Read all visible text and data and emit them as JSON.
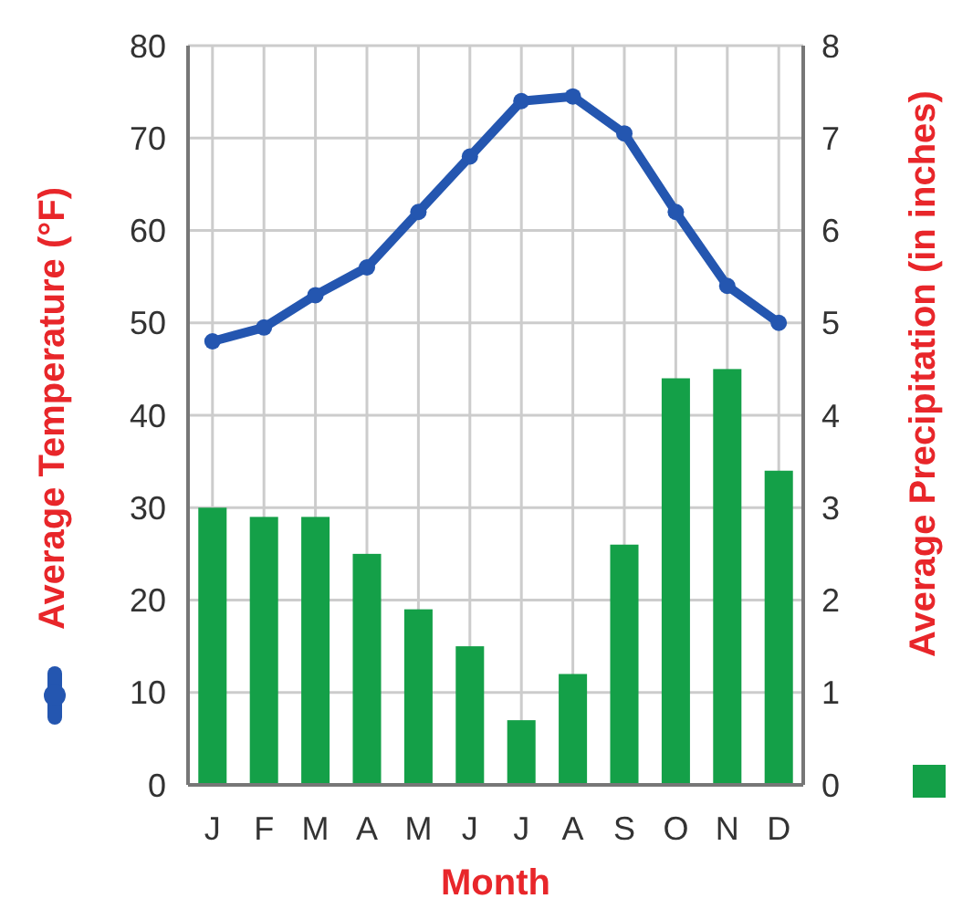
{
  "chart_data": {
    "type": "bar",
    "xlabel": "Month",
    "ylabel": "Average Temperature (°F)",
    "y2label": "Average Precipitation (in inches)",
    "categories": [
      "J",
      "F",
      "M",
      "A",
      "M",
      "J",
      "J",
      "A",
      "S",
      "O",
      "N",
      "D"
    ],
    "series": [
      {
        "axis": "y2",
        "color": "#14a048",
        "values": [
          3.0,
          2.9,
          2.9,
          2.5,
          1.9,
          1.5,
          0.7,
          1.2,
          2.6,
          4.4,
          4.5,
          3.4
        ]
      },
      {
        "type": "line",
        "axis": "y",
        "color": "#2456b0",
        "marker": "circle",
        "values": [
          48,
          49.5,
          53,
          56,
          62,
          68,
          74,
          74.5,
          70.5,
          62,
          54,
          50
        ]
      }
    ],
    "ylim": [
      0,
      80
    ],
    "yticks": [
      0,
      10,
      20,
      30,
      40,
      50,
      60,
      70,
      80
    ],
    "y2lim": [
      0,
      8
    ],
    "y2ticks": [
      0,
      1,
      2,
      3,
      4,
      5,
      6,
      7,
      8
    ],
    "grid": true
  }
}
